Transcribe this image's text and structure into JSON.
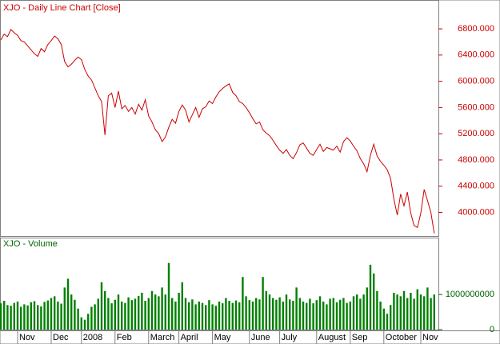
{
  "chart_data": [
    {
      "type": "line",
      "title": "XJO - Daily Line Chart [Close]",
      "series": [
        {
          "name": "Close",
          "color": "#cc0000",
          "values": [
            6630,
            6720,
            6680,
            6790,
            6740,
            6700,
            6620,
            6600,
            6540,
            6480,
            6420,
            6380,
            6500,
            6450,
            6560,
            6620,
            6690,
            6650,
            6560,
            6300,
            6220,
            6260,
            6320,
            6370,
            6330,
            6180,
            6080,
            6020,
            5900,
            5780,
            5690,
            5180,
            5780,
            5820,
            5600,
            5850,
            5580,
            5630,
            5540,
            5600,
            5500,
            5650,
            5560,
            5720,
            5470,
            5380,
            5260,
            5200,
            5080,
            5150,
            5300,
            5420,
            5360,
            5540,
            5640,
            5560,
            5380,
            5490,
            5600,
            5450,
            5580,
            5610,
            5700,
            5660,
            5760,
            5840,
            5890,
            5930,
            5960,
            5830,
            5780,
            5690,
            5660,
            5600,
            5520,
            5430,
            5350,
            5380,
            5260,
            5210,
            5170,
            5100,
            5020,
            4950,
            4900,
            4960,
            4870,
            4820,
            4910,
            5030,
            5060,
            4980,
            4900,
            4870,
            4960,
            5040,
            4930,
            4990,
            4970,
            4950,
            5010,
            4920,
            5080,
            5140,
            5090,
            5010,
            4940,
            4820,
            4740,
            4620,
            4870,
            5040,
            4860,
            4780,
            4720,
            4650,
            4520,
            4200,
            3960,
            4280,
            4100,
            4310,
            3990,
            3800,
            3770,
            3990,
            4350,
            4180,
            4000,
            3680
          ]
        }
      ],
      "ylim": [
        3640,
        7240
      ],
      "yticks": [
        {
          "value": 4000,
          "label": "4000.000"
        },
        {
          "value": 4400,
          "label": "4400.000"
        },
        {
          "value": 4800,
          "label": "4800.000"
        },
        {
          "value": 5200,
          "label": "5200.000"
        },
        {
          "value": 5600,
          "label": "5600.000"
        },
        {
          "value": 6000,
          "label": "6000.000"
        },
        {
          "value": 6400,
          "label": "6400.000"
        },
        {
          "value": 6800,
          "label": "6800.000"
        }
      ]
    },
    {
      "type": "bar",
      "title": "XJO - Volume",
      "categories": [
        null,
        null,
        null,
        null,
        null,
        "Nov",
        null,
        null,
        null,
        null,
        null,
        null,
        null,
        null,
        null,
        "Dec",
        null,
        null,
        null,
        null,
        null,
        null,
        null,
        null,
        "2008",
        null,
        null,
        null,
        null,
        null,
        null,
        null,
        null,
        null,
        "Feb",
        null,
        null,
        null,
        null,
        null,
        null,
        null,
        null,
        null,
        "March",
        null,
        null,
        null,
        null,
        null,
        null,
        null,
        null,
        "April",
        null,
        null,
        null,
        null,
        null,
        null,
        null,
        null,
        null,
        "May",
        null,
        null,
        null,
        null,
        null,
        null,
        null,
        null,
        null,
        null,
        "June",
        null,
        null,
        null,
        null,
        null,
        null,
        null,
        null,
        "July",
        null,
        null,
        null,
        null,
        null,
        null,
        null,
        null,
        null,
        null,
        "August",
        null,
        null,
        null,
        null,
        null,
        null,
        null,
        null,
        null,
        "Sep",
        null,
        null,
        null,
        null,
        null,
        null,
        null,
        null,
        null,
        "October",
        null,
        null,
        null,
        null,
        null,
        null,
        null,
        null,
        null,
        null,
        "Nov",
        null,
        null,
        null,
        null
      ],
      "series": [
        {
          "name": "Volume",
          "color": "#008000",
          "values": [
            750000000.0,
            820000000.0,
            700000000.0,
            680000000.0,
            760000000.0,
            800000000.0,
            650000000.0,
            720000000.0,
            690000000.0,
            780000000.0,
            810000000.0,
            700000000.0,
            660000000.0,
            790000000.0,
            830000000.0,
            900000000.0,
            950000000.0,
            800000000.0,
            740000000.0,
            1200000000.0,
            1450000000.0,
            1000000000.0,
            850000000.0,
            600000000.0,
            350000000.0,
            280000000.0,
            450000000.0,
            650000000.0,
            720000000.0,
            880000000.0,
            1350000000.0,
            1100000000.0,
            900000000.0,
            750000000.0,
            850000000.0,
            1000000000.0,
            800000000.0,
            760000000.0,
            920000000.0,
            840000000.0,
            880000000.0,
            960000000.0,
            1050000000.0,
            820000000.0,
            900000000.0,
            1100000000.0,
            1000000000.0,
            950000000.0,
            1200000000.0,
            1000000000.0,
            1900000000.0,
            900000000.0,
            800000000.0,
            1050000000.0,
            1350000000.0,
            900000000.0,
            780000000.0,
            860000000.0,
            720000000.0,
            800000000.0,
            760000000.0,
            700000000.0,
            840000000.0,
            720000000.0,
            680000000.0,
            800000000.0,
            750000000.0,
            900000000.0,
            820000000.0,
            760000000.0,
            830000000.0,
            780000000.0,
            1500000000.0,
            950000000.0,
            840000000.0,
            800000000.0,
            900000000.0,
            860000000.0,
            1500000000.0,
            1100000000.0,
            1000000000.0,
            900000000.0,
            850000000.0,
            920000000.0,
            800000000.0,
            1000000000.0,
            860000000.0,
            820000000.0,
            1200000000.0,
            900000000.0,
            800000000.0,
            760000000.0,
            880000000.0,
            750000000.0,
            840000000.0,
            950000000.0,
            800000000.0,
            720000000.0,
            880000000.0,
            900000000.0,
            780000000.0,
            850000000.0,
            900000000.0,
            760000000.0,
            800000000.0,
            950000000.0,
            1000000000.0,
            880000000.0,
            1000000000.0,
            1200000000.0,
            1850000000.0,
            1600000000.0,
            1100000000.0,
            800000000.0,
            600000000.0,
            450000000.0,
            700000000.0,
            1050000000.0,
            1000000000.0,
            950000000.0,
            1100000000.0,
            900000000.0,
            1050000000.0,
            880000000.0,
            1150000000.0,
            1000000000.0,
            950000000.0,
            1200000000.0,
            900000000.0,
            1000000000.0
          ]
        }
      ],
      "ylim": [
        0,
        2600000000
      ],
      "yticks": [
        0,
        1000000000
      ]
    }
  ]
}
